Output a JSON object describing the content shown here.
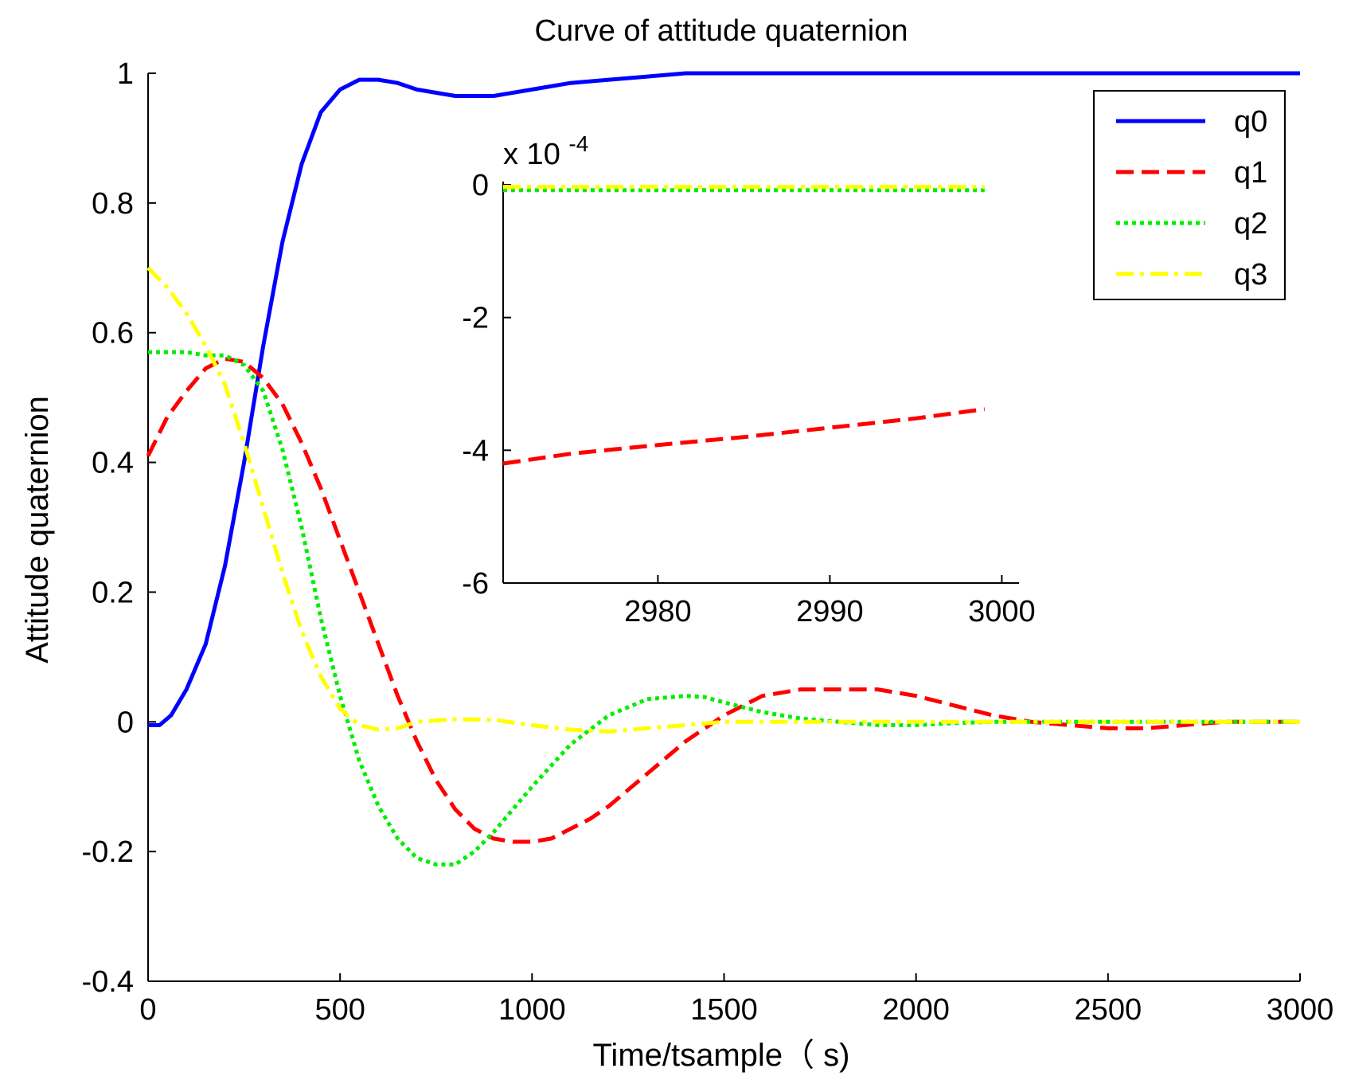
{
  "chart_data": [
    {
      "type": "line",
      "title": "Curve of attitude quaternion",
      "xlabel": "Time/tsample（ s)",
      "ylabel": "Attitude quaternion",
      "xlim": [
        0,
        3000
      ],
      "ylim": [
        -0.4,
        1
      ],
      "xticks": [
        0,
        500,
        1000,
        1500,
        2000,
        2500,
        3000
      ],
      "xtick_labels": [
        "0",
        "500",
        "1000",
        "1500",
        "2000",
        "2500",
        "3000"
      ],
      "yticks": [
        -0.4,
        -0.2,
        0,
        0.2,
        0.4,
        0.6,
        0.8,
        1
      ],
      "ytick_labels": [
        "-0.4",
        "-0.2",
        "0",
        "0.2",
        "0.4",
        "0.6",
        "0.8",
        "1"
      ],
      "grid": false,
      "legend": {
        "position": "top-right",
        "entries": [
          "q0",
          "q1",
          "q2",
          "q3"
        ]
      },
      "series": [
        {
          "name": "q0",
          "color": "#0000ff",
          "style": "solid",
          "x": [
            0,
            30,
            60,
            100,
            150,
            200,
            250,
            300,
            350,
            400,
            450,
            500,
            550,
            600,
            650,
            700,
            800,
            900,
            1000,
            1100,
            1200,
            1300,
            1400,
            1600,
            2000,
            2500,
            3000
          ],
          "y": [
            -0.005,
            -0.005,
            0.01,
            0.05,
            0.12,
            0.24,
            0.4,
            0.58,
            0.74,
            0.86,
            0.94,
            0.975,
            0.99,
            0.99,
            0.985,
            0.975,
            0.965,
            0.965,
            0.975,
            0.985,
            0.99,
            0.995,
            1.0,
            1.0,
            1.0,
            1.0,
            1.0
          ]
        },
        {
          "name": "q1",
          "color": "#ff0000",
          "style": "dashed",
          "x": [
            0,
            50,
            100,
            150,
            200,
            250,
            300,
            350,
            400,
            450,
            500,
            550,
            600,
            650,
            700,
            750,
            800,
            850,
            900,
            950,
            1000,
            1050,
            1100,
            1150,
            1200,
            1300,
            1400,
            1500,
            1600,
            1700,
            1800,
            1900,
            2000,
            2100,
            2200,
            2300,
            2400,
            2500,
            2600,
            2700,
            2800,
            3000
          ],
          "y": [
            0.41,
            0.47,
            0.51,
            0.545,
            0.56,
            0.555,
            0.53,
            0.49,
            0.43,
            0.36,
            0.28,
            0.2,
            0.12,
            0.04,
            -0.03,
            -0.09,
            -0.135,
            -0.165,
            -0.18,
            -0.185,
            -0.185,
            -0.18,
            -0.165,
            -0.15,
            -0.13,
            -0.08,
            -0.03,
            0.01,
            0.04,
            0.05,
            0.05,
            0.05,
            0.04,
            0.025,
            0.01,
            0.0,
            -0.005,
            -0.01,
            -0.01,
            -0.005,
            0.0,
            0.0
          ]
        },
        {
          "name": "q2",
          "color": "#00ee00",
          "style": "dotted",
          "x": [
            0,
            50,
            100,
            150,
            200,
            250,
            300,
            350,
            400,
            450,
            500,
            550,
            600,
            650,
            700,
            750,
            800,
            850,
            900,
            950,
            1000,
            1100,
            1200,
            1300,
            1400,
            1450,
            1500,
            1600,
            1700,
            1800,
            1900,
            2000,
            2100,
            2200,
            2500,
            3000
          ],
          "y": [
            0.57,
            0.57,
            0.57,
            0.565,
            0.565,
            0.55,
            0.51,
            0.42,
            0.3,
            0.16,
            0.04,
            -0.06,
            -0.13,
            -0.18,
            -0.21,
            -0.22,
            -0.22,
            -0.2,
            -0.17,
            -0.135,
            -0.1,
            -0.035,
            0.01,
            0.035,
            0.04,
            0.038,
            0.03,
            0.015,
            0.005,
            0.0,
            -0.005,
            -0.005,
            -0.002,
            0.0,
            0.0,
            0.0
          ]
        },
        {
          "name": "q3",
          "color": "#ffff00",
          "style": "dashdot",
          "x": [
            0,
            50,
            100,
            150,
            200,
            250,
            300,
            350,
            400,
            450,
            500,
            550,
            600,
            650,
            700,
            800,
            900,
            1000,
            1100,
            1200,
            1300,
            1400,
            1500,
            1700,
            2000,
            2500,
            3000
          ],
          "y": [
            0.7,
            0.67,
            0.63,
            0.58,
            0.52,
            0.43,
            0.33,
            0.23,
            0.14,
            0.07,
            0.02,
            -0.005,
            -0.012,
            -0.01,
            0.0,
            0.004,
            0.003,
            -0.005,
            -0.012,
            -0.015,
            -0.01,
            -0.005,
            0.0,
            0.0,
            0.0,
            0.0,
            0.0
          ]
        }
      ]
    },
    {
      "type": "line",
      "title": "",
      "scale_label": "x 10",
      "scale_exponent": "-4",
      "xlim": [
        2971,
        3001
      ],
      "ylim": [
        -6,
        0
      ],
      "xticks": [
        2980,
        2990,
        3000
      ],
      "xtick_labels": [
        "2980",
        "2990",
        "3000"
      ],
      "yticks": [
        -6,
        -4,
        -2,
        0
      ],
      "ytick_labels": [
        "-6",
        "-4",
        "-2",
        "0"
      ],
      "series": [
        {
          "name": "q1",
          "color": "#ff0000",
          "style": "dashed",
          "x": [
            2971,
            2975,
            2980,
            2985,
            2990,
            2995,
            2999
          ],
          "y": [
            -4.2,
            -4.05,
            -3.92,
            -3.8,
            -3.66,
            -3.52,
            -3.38
          ]
        },
        {
          "name": "q2",
          "color": "#00ee00",
          "style": "dotted",
          "x": [
            2971,
            2999
          ],
          "y": [
            -0.08,
            -0.08
          ]
        },
        {
          "name": "q3",
          "color": "#ffff00",
          "style": "dashdot",
          "x": [
            2971,
            2999
          ],
          "y": [
            -0.03,
            -0.03
          ]
        }
      ]
    }
  ]
}
